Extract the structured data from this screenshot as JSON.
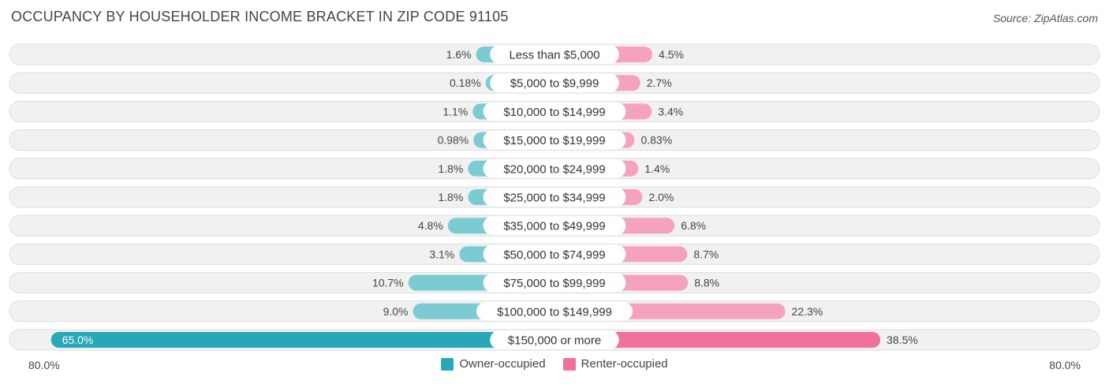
{
  "header": {
    "title": "OCCUPANCY BY HOUSEHOLDER INCOME BRACKET IN ZIP CODE 91105",
    "source": "Source: ZipAtlas.com"
  },
  "axis": {
    "left_label": "80.0%",
    "right_label": "80.0%"
  },
  "legend": {
    "owner_label": "Owner-occupied",
    "renter_label": "Renter-occupied"
  },
  "colors": {
    "owner": "#7ccbd3",
    "owner_strong": "#26a8b8",
    "renter": "#f5a3bd",
    "renter_strong": "#f07199",
    "row_bg": "#f1f1f1",
    "row_border": "#dddddd"
  },
  "chart_data": {
    "type": "bar",
    "orientation": "horizontal-diverging",
    "title": "OCCUPANCY BY HOUSEHOLDER INCOME BRACKET IN ZIP CODE 91105",
    "xlim": [
      -80,
      80
    ],
    "categories": [
      "Less than $5,000",
      "$5,000 to $9,999",
      "$10,000 to $14,999",
      "$15,000 to $19,999",
      "$20,000 to $24,999",
      "$25,000 to $34,999",
      "$35,000 to $49,999",
      "$50,000 to $74,999",
      "$75,000 to $99,999",
      "$100,000 to $149,999",
      "$150,000 or more"
    ],
    "series": [
      {
        "name": "Owner-occupied",
        "values": [
          1.6,
          0.18,
          1.1,
          0.98,
          1.8,
          1.8,
          4.8,
          3.1,
          10.7,
          9.0,
          65.0
        ],
        "labels": [
          "1.6%",
          "0.18%",
          "1.1%",
          "0.98%",
          "1.8%",
          "1.8%",
          "4.8%",
          "3.1%",
          "10.7%",
          "9.0%",
          "65.0%"
        ]
      },
      {
        "name": "Renter-occupied",
        "values": [
          4.5,
          2.7,
          3.4,
          0.83,
          1.4,
          2.0,
          6.8,
          8.7,
          8.8,
          22.3,
          38.5
        ],
        "labels": [
          "4.5%",
          "2.7%",
          "3.4%",
          "0.83%",
          "1.4%",
          "2.0%",
          "6.8%",
          "8.7%",
          "8.8%",
          "22.3%",
          "38.5%"
        ]
      }
    ],
    "legend_position": "bottom-center"
  }
}
